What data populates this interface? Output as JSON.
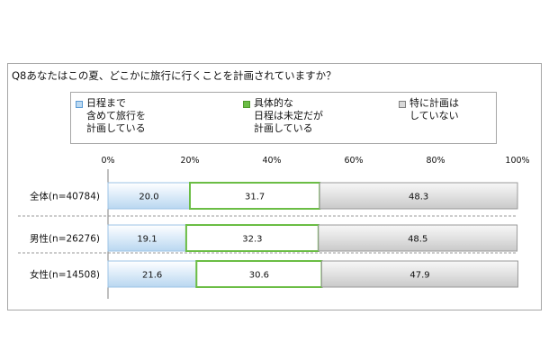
{
  "question": "Q8あなたはこの夏、どこかに旅行に行くことを計画されていますか？",
  "legend": [
    {
      "label": "日程まで\n含めて旅行を\n計画している",
      "color": "#bcd9f1",
      "border": "#5b9bd5"
    },
    {
      "label": "具体的な\n日程は未定だが\n計画している",
      "color": "#6bbd45",
      "border": "#4f9a2c"
    },
    {
      "label": "特に計画は\nしていない",
      "color": "#d9d9d9",
      "border": "#808080"
    }
  ],
  "chart_data": {
    "type": "bar",
    "orientation": "horizontal",
    "stacked": true,
    "xlim": [
      0,
      100
    ],
    "x_ticks": [
      "0%",
      "20%",
      "40%",
      "60%",
      "80%",
      "100%"
    ],
    "categories": [
      "全体(n=40784)",
      "男性(n=26276)",
      "女性(n=14508)"
    ],
    "series": [
      {
        "name": "日程まで含めて旅行を計画している",
        "values": [
          20.0,
          19.1,
          21.6
        ],
        "labels": [
          "20.0",
          "19.1",
          "21.6"
        ],
        "color": "#bcd9f1"
      },
      {
        "name": "具体的な日程は未定だが計画している",
        "values": [
          31.7,
          32.3,
          30.6
        ],
        "labels": [
          "31.7",
          "32.3",
          "30.6"
        ],
        "color": "#ffffff",
        "stroke": "#6bbd45"
      },
      {
        "name": "特に計画はしていない",
        "values": [
          48.3,
          48.5,
          47.9
        ],
        "labels": [
          "48.3",
          "48.5",
          "47.9"
        ],
        "color": "#e0e0e0"
      }
    ]
  }
}
